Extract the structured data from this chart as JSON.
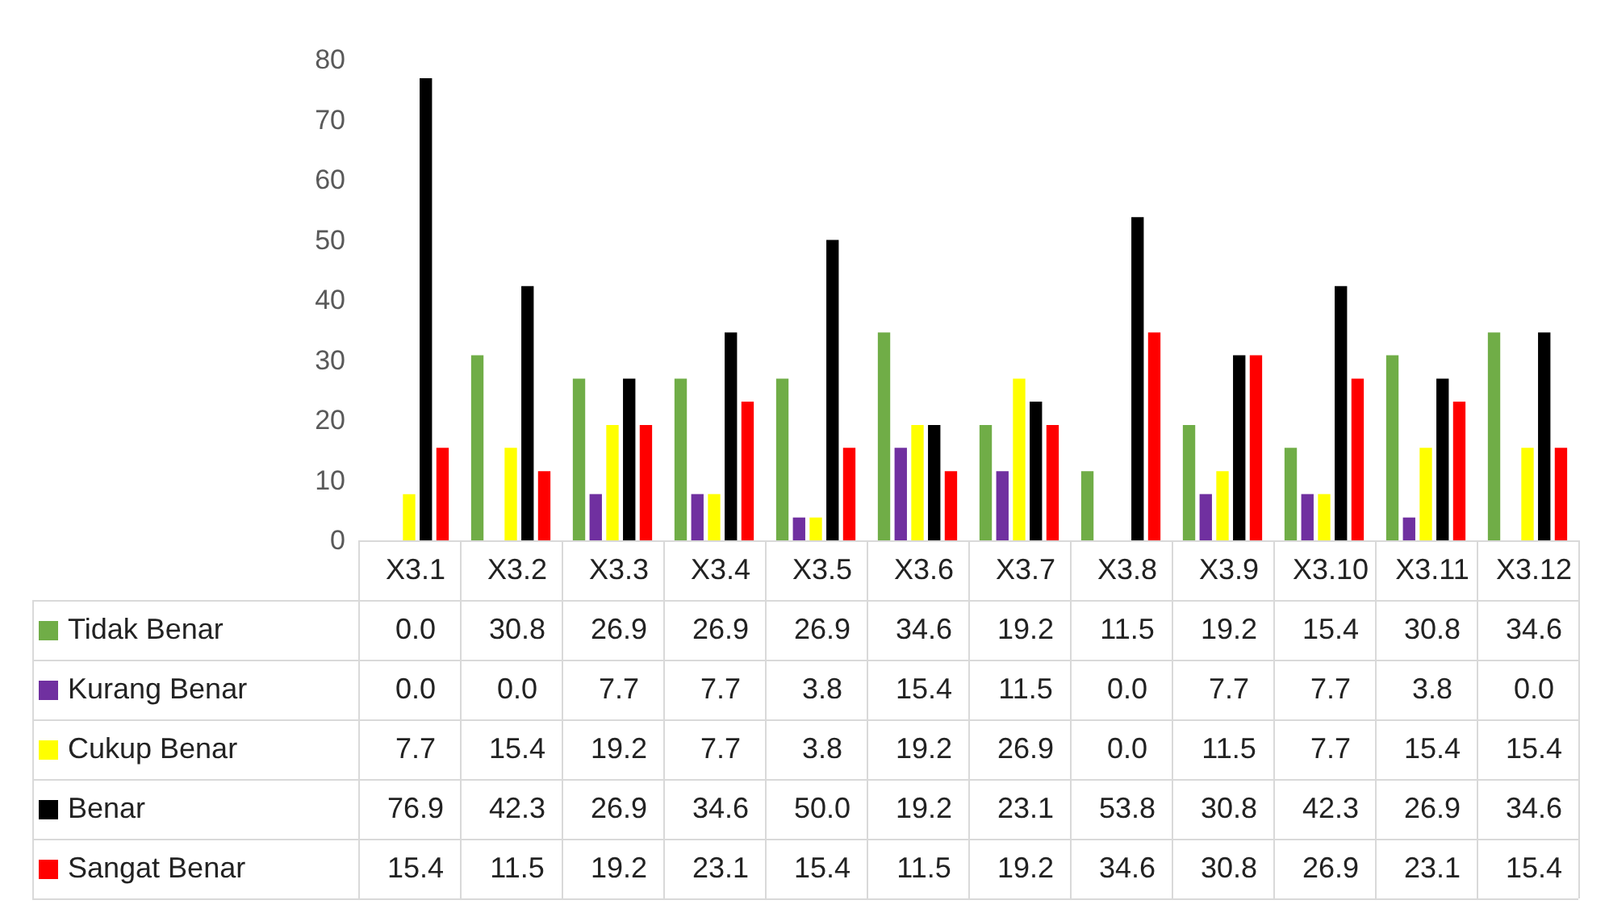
{
  "chart_data": {
    "type": "bar",
    "categories": [
      "X3.1",
      "X3.2",
      "X3.3",
      "X3.4",
      "X3.5",
      "X3.6",
      "X3.7",
      "X3.8",
      "X3.9",
      "X3.10",
      "X3.11",
      "X3.12"
    ],
    "series": [
      {
        "name": "Tidak Benar",
        "color": "#70ad47",
        "values": [
          0,
          30.8,
          26.9,
          26.9,
          26.9,
          34.6,
          19.2,
          11.5,
          19.2,
          15.4,
          30.8,
          34.6
        ],
        "value_labels": [
          "0.0",
          "30.8",
          "26.9",
          "26.9",
          "26.9",
          "34.6",
          "19.2",
          "11.5",
          "19.2",
          "15.4",
          "30.8",
          "34.6"
        ]
      },
      {
        "name": "Kurang Benar",
        "color": "#7030a0",
        "values": [
          0,
          0,
          7.7,
          7.7,
          3.8,
          15.4,
          11.5,
          0,
          7.7,
          7.7,
          3.8,
          0
        ],
        "value_labels": [
          "0.0",
          "0.0",
          "7.7",
          "7.7",
          "3.8",
          "15.4",
          "11.5",
          "0.0",
          "7.7",
          "7.7",
          "3.8",
          "0.0"
        ]
      },
      {
        "name": "Cukup Benar",
        "color": "#ffff00",
        "values": [
          7.7,
          15.4,
          19.2,
          7.7,
          3.8,
          19.2,
          26.9,
          0,
          11.5,
          7.7,
          15.4,
          15.4
        ],
        "value_labels": [
          "7.7",
          "15.4",
          "19.2",
          "7.7",
          "3.8",
          "19.2",
          "26.9",
          "0.0",
          "11.5",
          "7.7",
          "15.4",
          "15.4"
        ]
      },
      {
        "name": "Benar",
        "color": "#000000",
        "values": [
          76.9,
          42.3,
          26.9,
          34.6,
          50.0,
          19.2,
          23.1,
          53.8,
          30.8,
          42.3,
          26.9,
          34.6
        ],
        "value_labels": [
          "76.9",
          "42.3",
          "26.9",
          "34.6",
          "50.0",
          "19.2",
          "23.1",
          "53.8",
          "30.8",
          "42.3",
          "26.9",
          "34.6"
        ]
      },
      {
        "name": "Sangat Benar",
        "color": "#ff0000",
        "values": [
          15.4,
          11.5,
          19.2,
          23.1,
          15.4,
          11.5,
          19.2,
          34.6,
          30.8,
          26.9,
          23.1,
          15.4
        ],
        "value_labels": [
          "15.4",
          "11.5",
          "19.2",
          "23.1",
          "15.4",
          "11.5",
          "19.2",
          "34.6",
          "30.8",
          "26.9",
          "23.1",
          "15.4"
        ]
      }
    ],
    "ylim": [
      0,
      80
    ],
    "yticks": [
      0,
      10,
      20,
      30,
      40,
      50,
      60,
      70,
      80
    ],
    "grid": false,
    "legend": "bottom left"
  }
}
